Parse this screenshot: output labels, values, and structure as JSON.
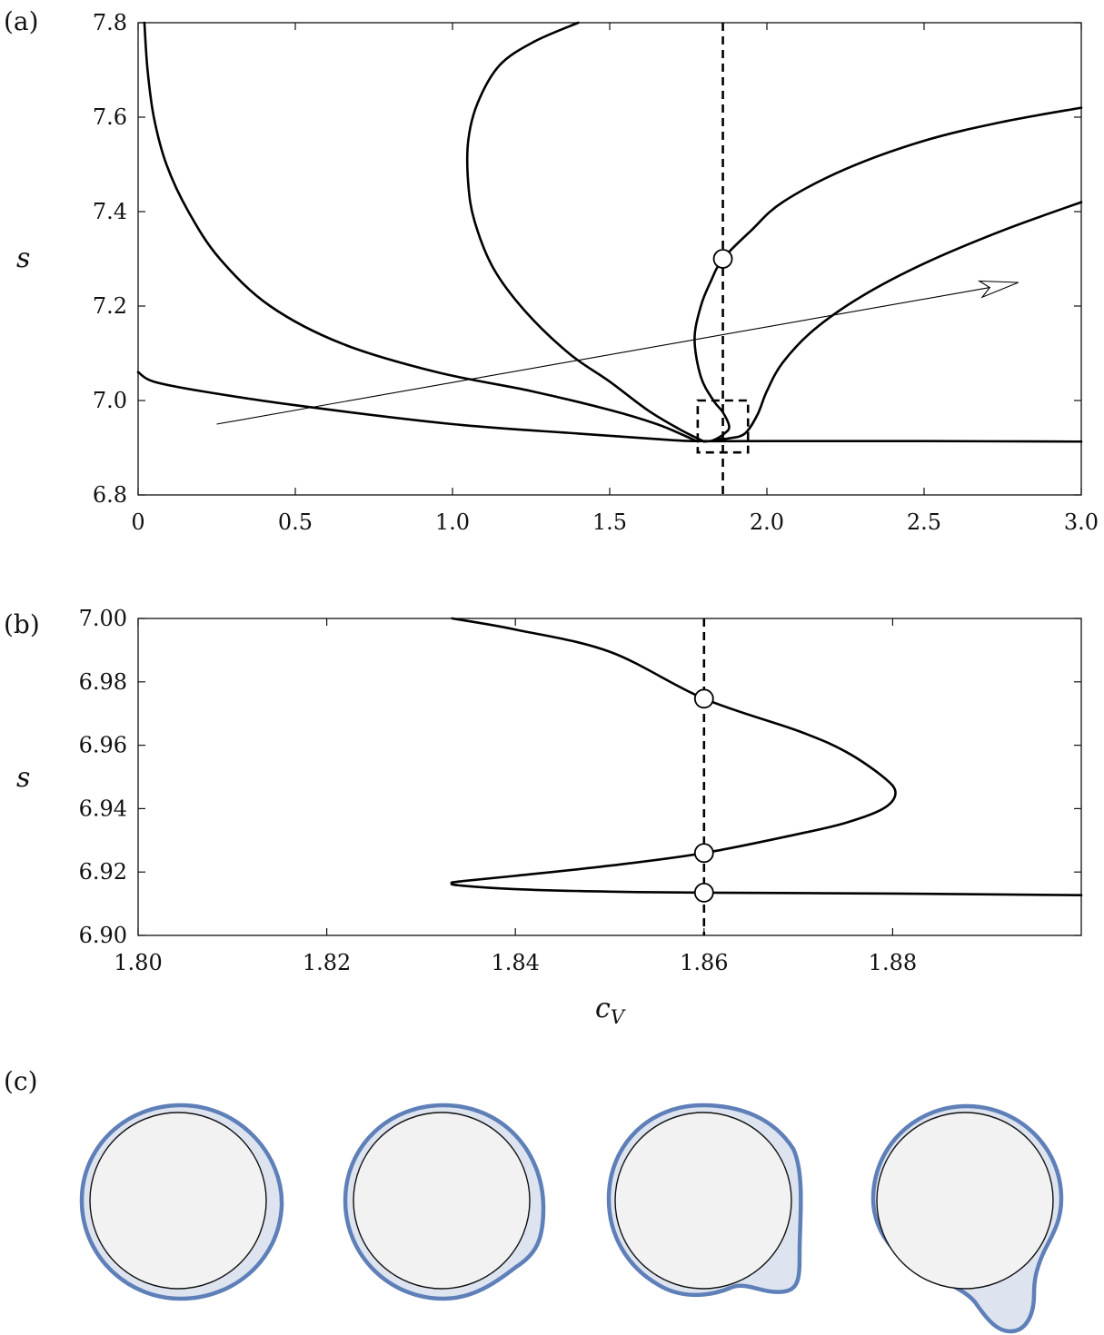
{
  "panel_labels": {
    "a": "(a)",
    "b": "(b)",
    "c": "(c)"
  },
  "chart_data": [
    {
      "panel": "(a)",
      "type": "line",
      "xlabel": "",
      "ylabel": "s",
      "xlim": [
        0,
        3.0
      ],
      "ylim": [
        6.8,
        7.8
      ],
      "x_ticks": [
        0,
        0.5,
        1.0,
        1.5,
        2.0,
        2.5,
        3.0
      ],
      "x_tick_labels": [
        "0",
        "0.5",
        "1.0",
        "1.5",
        "2.0",
        "2.5",
        "3.0"
      ],
      "y_ticks": [
        6.8,
        7.0,
        7.2,
        7.4,
        7.6,
        7.8
      ],
      "y_tick_labels": [
        "6.8",
        "7.0",
        "7.2",
        "7.4",
        "7.6",
        "7.8"
      ],
      "grid": false,
      "series": [
        {
          "values": [
            [
              0.02,
              7.8
            ],
            [
              0.03,
              7.7
            ],
            [
              0.05,
              7.6
            ],
            [
              0.09,
              7.5
            ],
            [
              0.16,
              7.4
            ],
            [
              0.26,
              7.3
            ],
            [
              0.42,
              7.2
            ],
            [
              0.65,
              7.12
            ],
            [
              0.95,
              7.06
            ],
            [
              1.25,
              7.02
            ],
            [
              1.5,
              6.98
            ],
            [
              1.65,
              6.95
            ],
            [
              1.74,
              6.925
            ],
            [
              1.78,
              6.913
            ]
          ]
        },
        {
          "values": [
            [
              1.4,
              7.8
            ],
            [
              1.26,
              7.76
            ],
            [
              1.15,
              7.71
            ],
            [
              1.08,
              7.63
            ],
            [
              1.05,
              7.55
            ],
            [
              1.05,
              7.46
            ],
            [
              1.07,
              7.38
            ],
            [
              1.13,
              7.28
            ],
            [
              1.23,
              7.19
            ],
            [
              1.37,
              7.1
            ],
            [
              1.5,
              7.04
            ],
            [
              1.62,
              6.98
            ],
            [
              1.72,
              6.94
            ],
            [
              1.8,
              6.913
            ]
          ]
        },
        {
          "values": [
            [
              3.0,
              7.62
            ],
            [
              2.75,
              7.59
            ],
            [
              2.5,
              7.55
            ],
            [
              2.25,
              7.49
            ],
            [
              2.05,
              7.42
            ],
            [
              1.95,
              7.36
            ],
            [
              1.86,
              7.3
            ],
            [
              1.82,
              7.25
            ],
            [
              1.79,
              7.2
            ],
            [
              1.77,
              7.13
            ],
            [
              1.79,
              7.05
            ],
            [
              1.83,
              7.0
            ],
            [
              1.86,
              6.975
            ],
            [
              1.88,
              6.945
            ],
            [
              1.865,
              6.93
            ],
            [
              1.83,
              6.916
            ],
            [
              1.8,
              6.913
            ]
          ]
        },
        {
          "values": [
            [
              3.0,
              7.42
            ],
            [
              2.75,
              7.36
            ],
            [
              2.5,
              7.29
            ],
            [
              2.3,
              7.22
            ],
            [
              2.15,
              7.15
            ],
            [
              2.05,
              7.08
            ],
            [
              2.0,
              7.02
            ],
            [
              1.97,
              6.97
            ],
            [
              1.93,
              6.93
            ],
            [
              1.88,
              6.92
            ],
            [
              1.84,
              6.918
            ]
          ]
        },
        {
          "values": [
            [
              0.0,
              7.06
            ],
            [
              0.05,
              7.04
            ],
            [
              0.2,
              7.02
            ],
            [
              0.5,
              6.99
            ],
            [
              1.0,
              6.95
            ],
            [
              1.4,
              6.93
            ],
            [
              1.7,
              6.916
            ],
            [
              1.8,
              6.914
            ],
            [
              2.0,
              6.914
            ],
            [
              2.5,
              6.914
            ],
            [
              3.0,
              6.913
            ]
          ]
        }
      ],
      "reference_line_x": 1.86,
      "markers": [
        [
          1.86,
          7.3
        ]
      ],
      "arrow": {
        "from": [
          0.25,
          6.95
        ],
        "to": [
          2.8,
          7.25
        ]
      },
      "inset_box": {
        "x": [
          1.78,
          1.94
        ],
        "y": [
          6.89,
          7.0
        ]
      }
    },
    {
      "panel": "(b)",
      "type": "line",
      "xlabel": "c_V",
      "ylabel": "s",
      "xlim": [
        1.8,
        1.9
      ],
      "ylim": [
        6.9,
        7.0
      ],
      "x_ticks": [
        1.8,
        1.82,
        1.84,
        1.86,
        1.88
      ],
      "x_tick_labels": [
        "1.80",
        "1.82",
        "1.84",
        "1.86",
        "1.88"
      ],
      "y_ticks": [
        6.9,
        6.92,
        6.94,
        6.96,
        6.98,
        7.0
      ],
      "y_tick_labels": [
        "6.90",
        "6.92",
        "6.94",
        "6.96",
        "6.98",
        "7.00"
      ],
      "grid": false,
      "series": [
        {
          "values": [
            [
              1.8333,
              7.0
            ],
            [
              1.84,
              6.9965
            ],
            [
              1.85,
              6.9895
            ],
            [
              1.86,
              6.9747
            ],
            [
              1.87,
              6.9645
            ],
            [
              1.875,
              6.958
            ],
            [
              1.879,
              6.95
            ],
            [
              1.8803,
              6.945
            ],
            [
              1.879,
              6.94
            ],
            [
              1.875,
              6.9355
            ],
            [
              1.87,
              6.932
            ],
            [
              1.86,
              6.926
            ],
            [
              1.85,
              6.922
            ],
            [
              1.84,
              6.9188
            ],
            [
              1.834,
              6.917
            ],
            [
              1.8333,
              6.9165
            ],
            [
              1.834,
              6.9158
            ],
            [
              1.84,
              6.9146
            ],
            [
              1.85,
              6.9138
            ],
            [
              1.86,
              6.9135
            ],
            [
              1.88,
              6.9132
            ],
            [
              1.9,
              6.9127
            ]
          ]
        }
      ],
      "reference_line_x": 1.86,
      "markers": [
        [
          1.86,
          6.9747
        ],
        [
          1.86,
          6.926
        ],
        [
          1.86,
          6.9135
        ]
      ]
    }
  ],
  "drops": {
    "count": 4,
    "fill_color": "#dde4ef",
    "outline_color": "#5e7fb8",
    "cylinder_color": "#f2f2f2",
    "cylinder_outline": "#111111"
  }
}
